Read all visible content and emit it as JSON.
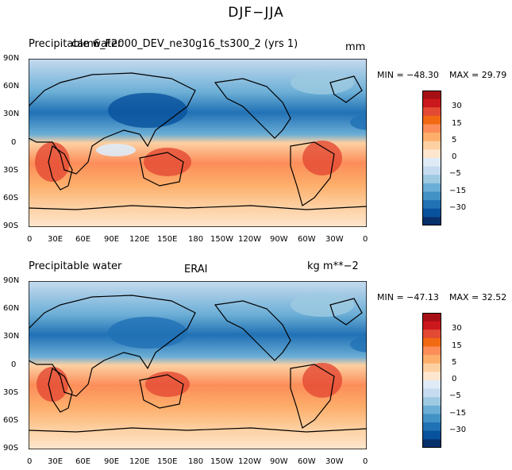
{
  "title": "DJF−JJA",
  "panels": [
    {
      "left_title": "Precipitable water",
      "center_title": "cam6_F2000_DEV_ne30g16_ts300_2 (yrs 1)",
      "right_title": "mm",
      "min_label": "MIN = −48.30",
      "max_label": "MAX =  29.79"
    },
    {
      "left_title": "Precipitable water",
      "center_title": "ERAI",
      "right_title": "kg m**−2",
      "min_label": "MIN = −47.13",
      "max_label": "MAX =  32.52"
    }
  ],
  "lat_labels": [
    "90N",
    "60N",
    "30N",
    "0",
    "30S",
    "60S",
    "90S"
  ],
  "lon_labels": [
    "0",
    "30E",
    "60E",
    "90E",
    "120E",
    "150E",
    "180",
    "150W",
    "120W",
    "90W",
    "60W",
    "30W",
    "0"
  ],
  "colorbar": {
    "colors": [
      "#a50f15",
      "#cb181d",
      "#e34a33",
      "#f16913",
      "#fc8d59",
      "#fdae6b",
      "#fdd0a2",
      "#fee6ce",
      "#deebf7",
      "#c6dbef",
      "#9ecae1",
      "#6baed6",
      "#4292c6",
      "#2171b5",
      "#08519c",
      "#08306b"
    ],
    "labels": [
      "30",
      "15",
      "5",
      "0",
      "−5",
      "−15",
      "−30"
    ]
  }
}
